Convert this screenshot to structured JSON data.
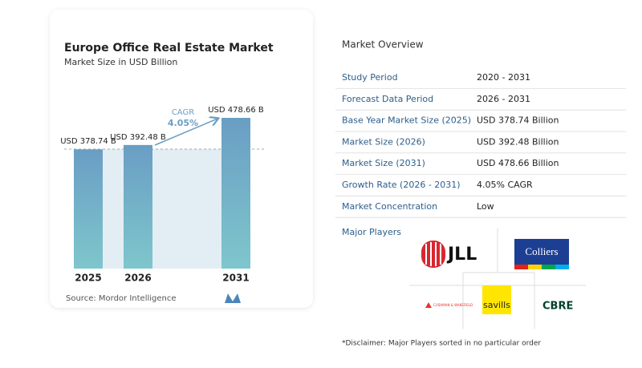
{
  "chart_data": {
    "type": "bar",
    "title": "Europe Office Real Estate Market",
    "subtitle": "Market Size in USD Billion",
    "categories": [
      "2025",
      "2026",
      "2031"
    ],
    "values": [
      378.74,
      392.48,
      478.66
    ],
    "value_labels": [
      "USD 378.74 B",
      "USD 392.48 B",
      "USD 478.66 B"
    ],
    "annotation_label": "CAGR",
    "annotation_value": "4.05%",
    "source": "Source:  Mordor Intelligence",
    "color": "#6a9ec4"
  },
  "overview": {
    "title": "Market Overview",
    "rows": [
      [
        "Study Period",
        "2020 - 2031"
      ],
      [
        "Forecast Data Period",
        "2026 - 2031"
      ],
      [
        "Base Year Market Size (2025)",
        "USD 378.74 Billion"
      ],
      [
        "Market Size (2026)",
        "USD 392.48 Billion"
      ],
      [
        "Market Size (2031)",
        "USD 478.66 Billion"
      ],
      [
        "Growth Rate (2026 - 2031)",
        "4.05% CAGR"
      ],
      [
        "Market Concentration",
        "Low"
      ]
    ],
    "players_title": "Major Players",
    "players": [
      "JLL",
      "Colliers",
      "CUSHMAN & WAKEFIELD",
      "savills",
      "CBRE"
    ],
    "disclaimer": "*Disclaimer: Major Players sorted in no particular order"
  }
}
